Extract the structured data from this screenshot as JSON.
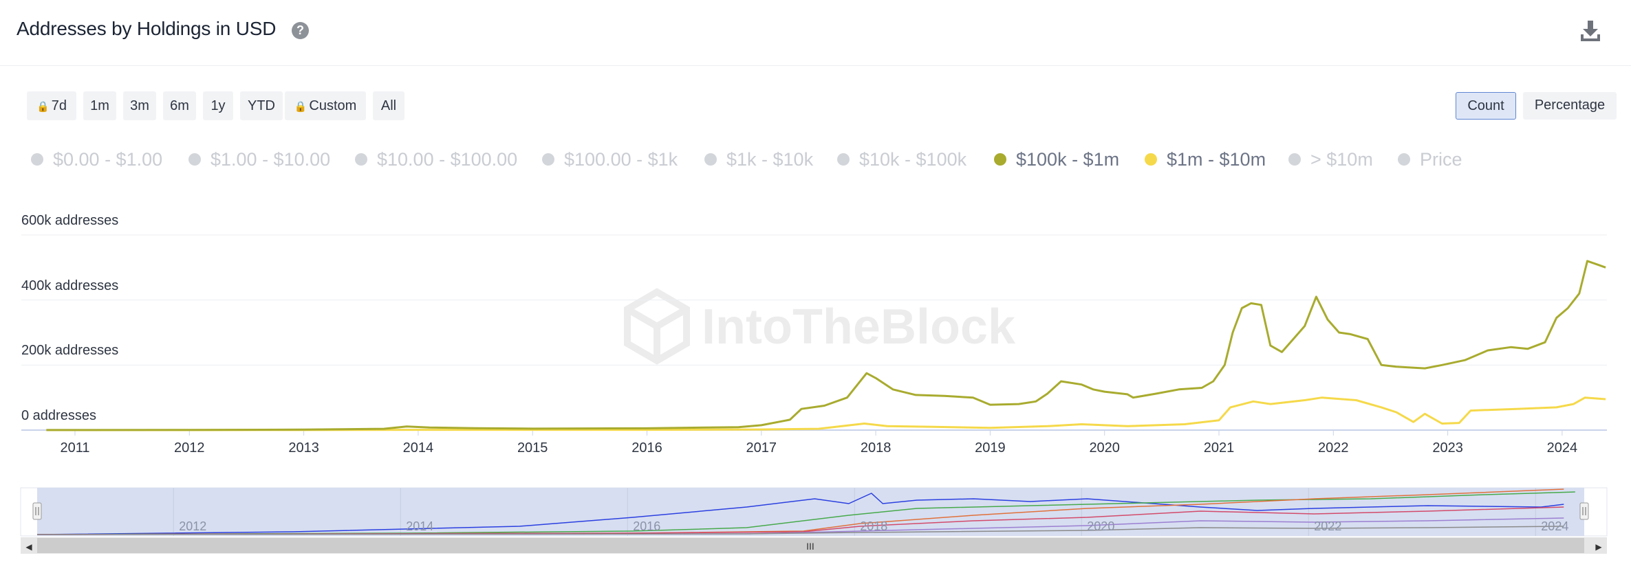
{
  "header": {
    "title": "Addresses by Holdings in USD",
    "help_icon": "question-icon",
    "download_icon": "download-icon"
  },
  "range_buttons": [
    {
      "label": "7d",
      "locked": true
    },
    {
      "label": "1m",
      "locked": false
    },
    {
      "label": "3m",
      "locked": false
    },
    {
      "label": "6m",
      "locked": false
    },
    {
      "label": "1y",
      "locked": false
    },
    {
      "label": "YTD",
      "locked": false
    },
    {
      "label": "Custom",
      "locked": true
    },
    {
      "label": "All",
      "locked": false
    }
  ],
  "lock_glyph": "🔒",
  "mode_buttons": [
    {
      "label": "Count",
      "active": true
    },
    {
      "label": "Percentage",
      "active": false
    }
  ],
  "legend": [
    {
      "label": "$0.00 - $1.00",
      "active": false,
      "color": "#d2d5da"
    },
    {
      "label": "$1.00 - $10.00",
      "active": false,
      "color": "#d2d5da"
    },
    {
      "label": "$10.00 - $100.00",
      "active": false,
      "color": "#d2d5da"
    },
    {
      "label": "$100.00 - $1k",
      "active": false,
      "color": "#d2d5da"
    },
    {
      "label": "$1k - $10k",
      "active": false,
      "color": "#d2d5da"
    },
    {
      "label": "$10k - $100k",
      "active": false,
      "color": "#d2d5da"
    },
    {
      "label": "$100k - $1m",
      "active": true,
      "color": "#a8ab2e"
    },
    {
      "label": "$1m - $10m",
      "active": true,
      "color": "#f5d94a"
    },
    {
      "label": "> $10m",
      "active": false,
      "color": "#d2d5da"
    },
    {
      "label": "Price",
      "active": false,
      "color": "#d2d5da"
    }
  ],
  "watermark": "IntoTheBlock",
  "chart_data": {
    "type": "line",
    "title": "Addresses by Holdings in USD",
    "ylabel": "addresses",
    "ylim": [
      0,
      600000
    ],
    "y_ticks": [
      {
        "value": 0,
        "label": "0 addresses"
      },
      {
        "value": 200000,
        "label": "200k addresses"
      },
      {
        "value": 400000,
        "label": "400k addresses"
      },
      {
        "value": 600000,
        "label": "600k addresses"
      }
    ],
    "xlim": [
      2010.75,
      2024.38
    ],
    "x_ticks": [
      "2011",
      "2012",
      "2013",
      "2014",
      "2015",
      "2016",
      "2017",
      "2018",
      "2019",
      "2020",
      "2021",
      "2022",
      "2023",
      "2024"
    ],
    "series": [
      {
        "name": "$100k - $1m",
        "color": "#a8ab2e",
        "points": [
          [
            2010.75,
            300
          ],
          [
            2012,
            600
          ],
          [
            2013,
            1500
          ],
          [
            2013.7,
            4000
          ],
          [
            2013.9,
            11000
          ],
          [
            2014.1,
            8000
          ],
          [
            2014.5,
            6000
          ],
          [
            2015,
            4500
          ],
          [
            2016,
            5500
          ],
          [
            2016.8,
            9000
          ],
          [
            2017,
            15000
          ],
          [
            2017.25,
            32000
          ],
          [
            2017.35,
            65000
          ],
          [
            2017.55,
            75000
          ],
          [
            2017.75,
            100000
          ],
          [
            2017.92,
            175000
          ],
          [
            2018.0,
            160000
          ],
          [
            2018.15,
            125000
          ],
          [
            2018.35,
            108000
          ],
          [
            2018.6,
            105000
          ],
          [
            2018.85,
            100000
          ],
          [
            2019.0,
            78000
          ],
          [
            2019.25,
            80000
          ],
          [
            2019.4,
            88000
          ],
          [
            2019.5,
            112000
          ],
          [
            2019.62,
            150000
          ],
          [
            2019.8,
            140000
          ],
          [
            2019.9,
            125000
          ],
          [
            2020.0,
            118000
          ],
          [
            2020.2,
            110000
          ],
          [
            2020.25,
            100000
          ],
          [
            2020.45,
            112000
          ],
          [
            2020.65,
            125000
          ],
          [
            2020.85,
            130000
          ],
          [
            2020.95,
            150000
          ],
          [
            2021.05,
            200000
          ],
          [
            2021.12,
            300000
          ],
          [
            2021.2,
            375000
          ],
          [
            2021.28,
            390000
          ],
          [
            2021.37,
            385000
          ],
          [
            2021.45,
            260000
          ],
          [
            2021.55,
            240000
          ],
          [
            2021.65,
            280000
          ],
          [
            2021.75,
            320000
          ],
          [
            2021.85,
            410000
          ],
          [
            2021.95,
            340000
          ],
          [
            2022.05,
            300000
          ],
          [
            2022.15,
            295000
          ],
          [
            2022.3,
            280000
          ],
          [
            2022.42,
            200000
          ],
          [
            2022.55,
            195000
          ],
          [
            2022.8,
            190000
          ],
          [
            2022.95,
            200000
          ],
          [
            2023.15,
            215000
          ],
          [
            2023.35,
            245000
          ],
          [
            2023.55,
            255000
          ],
          [
            2023.7,
            250000
          ],
          [
            2023.85,
            270000
          ],
          [
            2023.95,
            345000
          ],
          [
            2024.05,
            375000
          ],
          [
            2024.15,
            420000
          ],
          [
            2024.22,
            520000
          ],
          [
            2024.3,
            510000
          ],
          [
            2024.38,
            500000
          ]
        ]
      },
      {
        "name": "$1m - $10m",
        "color": "#f5d94a",
        "points": [
          [
            2010.75,
            100
          ],
          [
            2013,
            300
          ],
          [
            2014,
            800
          ],
          [
            2015,
            800
          ],
          [
            2016,
            900
          ],
          [
            2017,
            2000
          ],
          [
            2017.5,
            4000
          ],
          [
            2017.9,
            20000
          ],
          [
            2018.1,
            12000
          ],
          [
            2018.5,
            10000
          ],
          [
            2019.0,
            7000
          ],
          [
            2019.5,
            12000
          ],
          [
            2019.8,
            18000
          ],
          [
            2020.2,
            12000
          ],
          [
            2020.7,
            18000
          ],
          [
            2021.0,
            30000
          ],
          [
            2021.1,
            70000
          ],
          [
            2021.3,
            88000
          ],
          [
            2021.45,
            80000
          ],
          [
            2021.75,
            92000
          ],
          [
            2021.9,
            100000
          ],
          [
            2022.2,
            92000
          ],
          [
            2022.42,
            70000
          ],
          [
            2022.55,
            55000
          ],
          [
            2022.7,
            25000
          ],
          [
            2022.8,
            50000
          ],
          [
            2022.95,
            20000
          ],
          [
            2023.1,
            22000
          ],
          [
            2023.2,
            60000
          ],
          [
            2023.6,
            65000
          ],
          [
            2023.95,
            70000
          ],
          [
            2024.1,
            80000
          ],
          [
            2024.2,
            100000
          ],
          [
            2024.38,
            95000
          ]
        ]
      }
    ]
  },
  "navigator": {
    "x_ticks": [
      "2012",
      "2014",
      "2016",
      "2018",
      "2020",
      "2022",
      "2024"
    ],
    "scroll_glyph": "III",
    "left_arrow": "◀",
    "right_arrow": "▶",
    "series": [
      {
        "color": "#2a3fe0",
        "points": [
          [
            2010.75,
            0
          ],
          [
            2013,
            4
          ],
          [
            2015,
            12
          ],
          [
            2016,
            25
          ],
          [
            2017,
            40
          ],
          [
            2017.6,
            52
          ],
          [
            2017.9,
            45
          ],
          [
            2018.1,
            60
          ],
          [
            2018.2,
            45
          ],
          [
            2018.5,
            50
          ],
          [
            2019,
            52
          ],
          [
            2019.5,
            48
          ],
          [
            2020,
            52
          ],
          [
            2021,
            40
          ],
          [
            2021.5,
            35
          ],
          [
            2022,
            38
          ],
          [
            2023,
            42
          ],
          [
            2024,
            40
          ],
          [
            2024.2,
            44
          ]
        ]
      },
      {
        "color": "#46a94a",
        "points": [
          [
            2010.75,
            0
          ],
          [
            2014,
            2
          ],
          [
            2016,
            5
          ],
          [
            2017,
            10
          ],
          [
            2017.9,
            28
          ],
          [
            2018.5,
            38
          ],
          [
            2019.5,
            42
          ],
          [
            2020.5,
            46
          ],
          [
            2021.5,
            50
          ],
          [
            2022.5,
            52
          ],
          [
            2023.5,
            58
          ],
          [
            2024.3,
            62
          ]
        ]
      },
      {
        "color": "#e0703a",
        "points": [
          [
            2010.75,
            0
          ],
          [
            2016,
            2
          ],
          [
            2017.5,
            5
          ],
          [
            2018,
            16
          ],
          [
            2019,
            28
          ],
          [
            2020,
            38
          ],
          [
            2021,
            44
          ],
          [
            2022,
            52
          ],
          [
            2023,
            58
          ],
          [
            2024.2,
            66
          ]
        ]
      },
      {
        "color": "#d24a6a",
        "points": [
          [
            2010.75,
            0
          ],
          [
            2016,
            2
          ],
          [
            2017.5,
            4
          ],
          [
            2018,
            12
          ],
          [
            2019,
            20
          ],
          [
            2020,
            25
          ],
          [
            2021,
            34
          ],
          [
            2022,
            30
          ],
          [
            2023,
            34
          ],
          [
            2024.2,
            40
          ]
        ]
      },
      {
        "color": "#9b7fd1",
        "points": [
          [
            2010.75,
            0
          ],
          [
            2017,
            1
          ],
          [
            2018,
            5
          ],
          [
            2019,
            9
          ],
          [
            2020,
            13
          ],
          [
            2021,
            20
          ],
          [
            2022,
            18
          ],
          [
            2023,
            20
          ],
          [
            2024.2,
            24
          ]
        ]
      },
      {
        "color": "#8a8a8a",
        "points": [
          [
            2010.75,
            0
          ],
          [
            2017,
            1
          ],
          [
            2018,
            3
          ],
          [
            2020,
            6
          ],
          [
            2021,
            10
          ],
          [
            2022,
            9
          ],
          [
            2023,
            10
          ],
          [
            2024.2,
            12
          ]
        ]
      }
    ]
  }
}
